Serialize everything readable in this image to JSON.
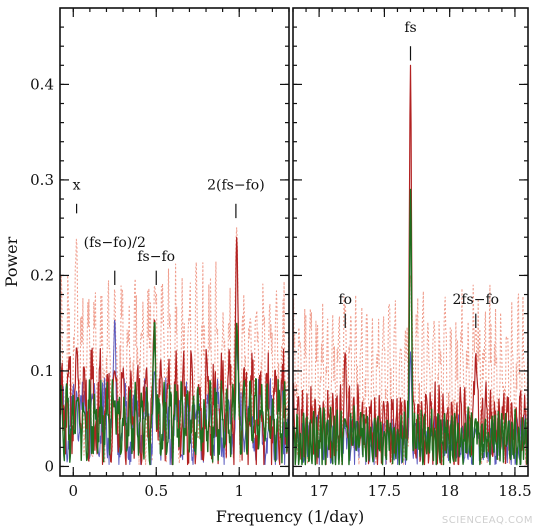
{
  "chart_data": {
    "type": "line",
    "ylabel": "Power",
    "xlabel": "Frequency (1/day)",
    "ylim": [
      -0.01,
      0.48
    ],
    "yticks": [
      0,
      0.1,
      0.2,
      0.3,
      0.4
    ],
    "ytick_labels": [
      "0",
      "0.1",
      "0.2",
      "0.3",
      "0.4"
    ],
    "colors": {
      "red": "#b22222",
      "blue": "#5b5bbf",
      "green": "#1f6e1f",
      "dotted": "#f0a090"
    },
    "panels": [
      {
        "name": "left",
        "xlim": [
          -0.08,
          1.3
        ],
        "xticks": [
          0,
          0.5,
          1
        ],
        "xtick_labels": [
          "0",
          "0.5",
          "1"
        ],
        "annotations": [
          {
            "text": "x",
            "x": 0.02,
            "y_text": 0.29,
            "line_from": 0.275,
            "line_to": 0.265
          },
          {
            "text": "(fs−fo)/2",
            "x": 0.25,
            "y_text": 0.23,
            "line_from": 0.205,
            "line_to": 0.19
          },
          {
            "text": "fs−fo",
            "x": 0.5,
            "y_text": 0.215,
            "line_from": 0.205,
            "line_to": 0.19
          },
          {
            "text": "2(fs−fo)",
            "x": 0.98,
            "y_text": 0.29,
            "line_from": 0.275,
            "line_to": 0.26
          }
        ],
        "peaks": [
          {
            "x": 0.02,
            "red": 0.125,
            "blue": 0.08,
            "green": 0.07,
            "dotted": 0.24
          },
          {
            "x": 0.25,
            "red": 0.1,
            "blue": 0.155,
            "green": 0.07,
            "dotted": 0.14
          },
          {
            "x": 0.49,
            "red": 0.155,
            "blue": 0.1,
            "green": 0.155,
            "dotted": 0.19
          },
          {
            "x": 0.985,
            "red": 0.24,
            "blue": 0.13,
            "green": 0.15,
            "dotted": 0.25
          }
        ]
      },
      {
        "name": "right",
        "xlim": [
          16.8,
          18.6
        ],
        "xticks": [
          17,
          17.5,
          18,
          18.5
        ],
        "xtick_labels": [
          "17",
          "17.5",
          "18",
          "18.5"
        ],
        "annotations": [
          {
            "text": "fs",
            "x": 17.7,
            "y_text": 0.455,
            "line_from": 0.44,
            "line_to": 0.425
          },
          {
            "text": "fo",
            "x": 17.2,
            "y_text": 0.17,
            "line_from": 0.16,
            "line_to": 0.145
          },
          {
            "text": "2fs−fo",
            "x": 18.2,
            "y_text": 0.17,
            "line_from": 0.16,
            "line_to": 0.145
          }
        ],
        "peaks": [
          {
            "x": 17.2,
            "red": 0.12,
            "blue": 0.04,
            "green": 0.05,
            "dotted": 0.17
          },
          {
            "x": 17.7,
            "red": 0.42,
            "blue": 0.12,
            "green": 0.29,
            "dotted": 0.2
          },
          {
            "x": 18.2,
            "red": 0.12,
            "blue": 0.04,
            "green": 0.05,
            "dotted": 0.15
          }
        ]
      }
    ]
  },
  "watermark": "SCIENCEAQ.COM"
}
